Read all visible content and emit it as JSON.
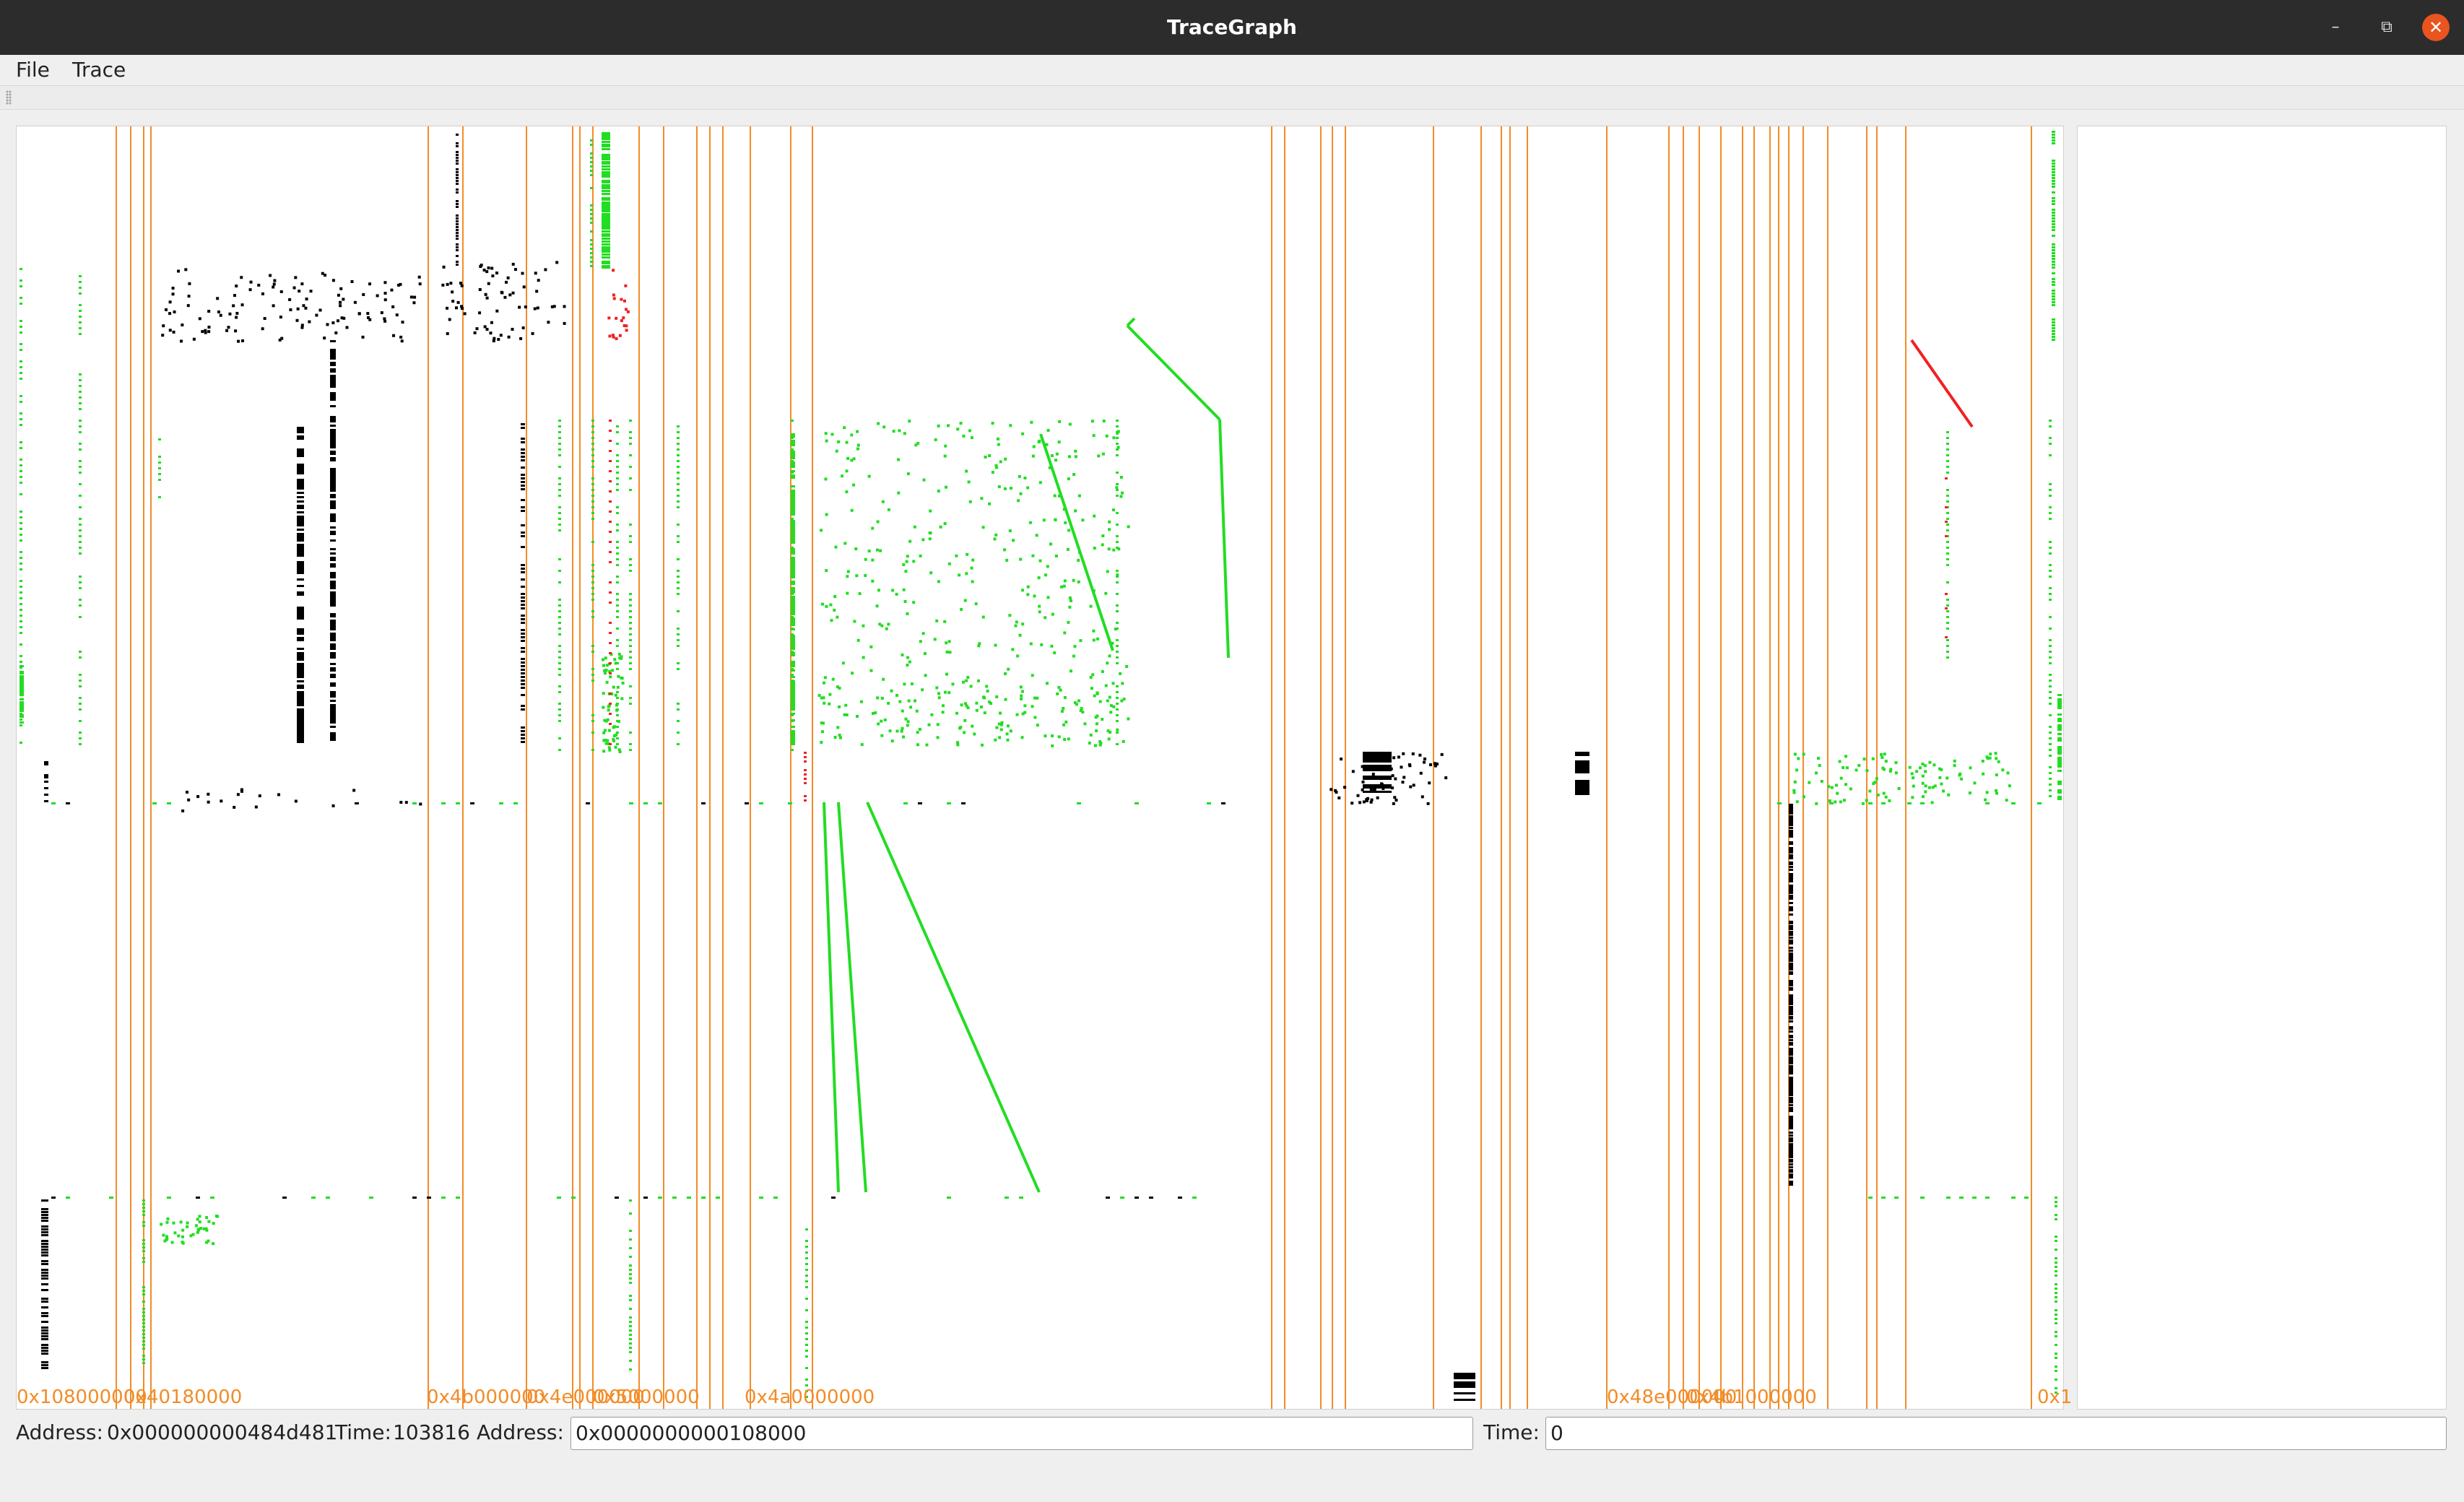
{
  "window": {
    "title": "TraceGraph",
    "minimize_icon": "minimize-icon",
    "maximize_icon": "restore-icon",
    "close_icon": "close-icon"
  },
  "menu": {
    "items": [
      "File",
      "Trace"
    ]
  },
  "status": {
    "hover_address_label": "Address:",
    "hover_address_value": "0x000000000484d481",
    "hover_time_label": "Time:",
    "hover_time_value": "103816",
    "address_label": "Address:",
    "address_value": "0x0000000000108000",
    "time_label": "Time:",
    "time_value": "0"
  },
  "graph": {
    "colors": {
      "divider": "#f28c28",
      "read": "#000000",
      "write": "#22dd22",
      "highlight": "#ee2222"
    },
    "address_labels": [
      "0x108000000",
      "0x40180000",
      "0x4b000000",
      "0x4e000000",
      "0x5000000",
      "0x4a0000000",
      "0x48e000000",
      "0x4b1000000",
      "0x1"
    ]
  }
}
